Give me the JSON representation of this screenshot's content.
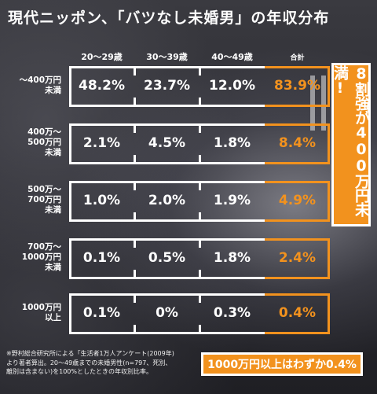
{
  "title": "現代ニッポン、「バツなし未婚男」の年収分布",
  "colors": {
    "accent": "#f2921e",
    "line": "#ffffff"
  },
  "chart_data": {
    "type": "table",
    "columns": [
      "20〜29歳",
      "30〜39歳",
      "40〜49歳",
      "合計"
    ],
    "rows": [
      {
        "label": "〜400万円\n未満",
        "values": [
          "48.2%",
          "23.7%",
          "12.0%",
          "83.9%"
        ]
      },
      {
        "label": "400万〜\n500万円\n未満",
        "values": [
          "2.1%",
          "4.5%",
          "1.8%",
          "8.4%"
        ]
      },
      {
        "label": "500万〜\n700万円\n未満",
        "values": [
          "1.0%",
          "2.0%",
          "1.9%",
          "4.9%"
        ]
      },
      {
        "label": "700万〜\n1000万円\n未満",
        "values": [
          "0.1%",
          "0.5%",
          "1.8%",
          "2.4%"
        ]
      },
      {
        "label": "1000万円\n以上",
        "values": [
          "0.1%",
          "0%",
          "0.3%",
          "0.4%"
        ]
      }
    ]
  },
  "callouts": {
    "vertical": "8割強が400万円未満!",
    "horizontal": "1000万円以上はわずか0.4%"
  },
  "note": "※野村総合研究所による「生活者1万人アンケート(2009年)\nより著者算出。20〜49歳までの未婚男性(n=797、死別、\n離別は含まない)を100%としたときの年収別比率。"
}
